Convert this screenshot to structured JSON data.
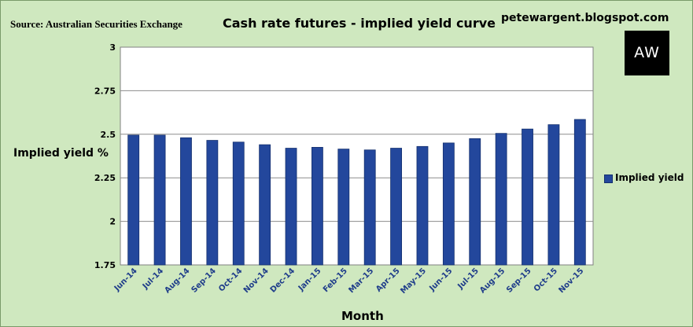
{
  "header": {
    "source": "Source: Australian Securities Exchange",
    "title": "Cash rate futures - implied yield curve",
    "blog": "petewargent.blogspot.com",
    "logo_text": "AW"
  },
  "colors": {
    "background": "#cfe8bf",
    "plot_area": "#ffffff",
    "bar": "#23479c",
    "bar_edge": "#14306e",
    "tick_label": "#1f3d8a"
  },
  "chart_data": {
    "type": "bar",
    "title": "Cash rate futures - implied yield curve",
    "xlabel": "Month",
    "ylabel": "Implied yield %",
    "ylim": [
      1.75,
      3
    ],
    "yticks": [
      "1.75",
      "2",
      "2.25",
      "2.5",
      "2.75",
      "3"
    ],
    "grid": true,
    "legend_position": "right",
    "categories": [
      "Jun-14",
      "Jul-14",
      "Aug-14",
      "Sep-14",
      "Oct-14",
      "Nov-14",
      "Dec-14",
      "Jan-15",
      "Feb-15",
      "Mar-15",
      "Apr-15",
      "May-15",
      "Jun-15",
      "Jul-15",
      "Aug-15",
      "Sep-15",
      "Oct-15",
      "Nov-15"
    ],
    "series": [
      {
        "name": "Implied yield",
        "values": [
          2.495,
          2.495,
          2.48,
          2.465,
          2.455,
          2.44,
          2.42,
          2.425,
          2.415,
          2.41,
          2.42,
          2.43,
          2.45,
          2.475,
          2.505,
          2.53,
          2.555,
          2.585
        ]
      }
    ]
  }
}
